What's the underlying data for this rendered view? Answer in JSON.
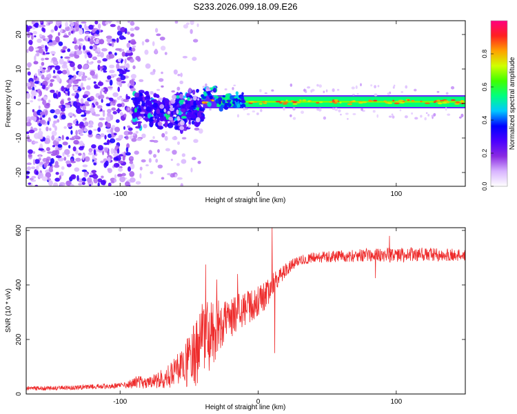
{
  "title": "S233.2026.099.18.09.E26",
  "chart_data": [
    {
      "type": "heatmap",
      "name": "spectrogram",
      "xlabel": "Height of straight line (km)",
      "ylabel": "Frequency (Hz)",
      "xlim": [
        -168,
        150
      ],
      "ylim": [
        -24,
        24
      ],
      "xticks": [
        -100,
        0,
        100
      ],
      "yticks": [
        -20,
        -10,
        0,
        10,
        20
      ],
      "colorbar": {
        "label": "Normalized spectral amplitude",
        "range": [
          0,
          1
        ],
        "ticks": [
          0.0,
          0.2,
          0.4,
          0.6,
          0.8
        ],
        "tick_labels": [
          "0.0",
          "0.2",
          "0.4",
          "0.6",
          "0.8"
        ],
        "colors": [
          "#ffffff",
          "#d8b4ff",
          "#8a2be2",
          "#4b00ff",
          "#0000ff",
          "#00c8ff",
          "#00ff80",
          "#40ff00",
          "#d0ff00",
          "#ffa000",
          "#ff2020",
          "#ff0080"
        ]
      },
      "features": [
        {
          "x_range": [
            -168,
            -90
          ],
          "freq_range": [
            -24,
            24
          ],
          "amplitude": 0.2,
          "note": "broadband scattered noise"
        },
        {
          "x_range": [
            -90,
            -40
          ],
          "freq_range": [
            -9,
            6
          ],
          "amplitude": 0.35,
          "note": "narrowing energy band"
        },
        {
          "x_range": [
            -40,
            150
          ],
          "freq_center": 0.5,
          "freq_width": 3,
          "amplitude": 0.8,
          "note": "strong narrowband carrier near 0 Hz"
        }
      ]
    },
    {
      "type": "line",
      "name": "snr",
      "xlabel": "Height of straight line (km)",
      "ylabel": "SNR (10 * v/v)",
      "xlim": [
        -168,
        150
      ],
      "ylim": [
        0,
        610
      ],
      "xticks": [
        -100,
        0,
        100
      ],
      "yticks": [
        0,
        200,
        400,
        600
      ],
      "color": "#ee2a2a",
      "series": [
        {
          "name": "SNR",
          "x": [
            -168,
            -150,
            -130,
            -110,
            -95,
            -88,
            -80,
            -70,
            -60,
            -50,
            -45,
            -40,
            -35,
            -30,
            -25,
            -20,
            -15,
            -10,
            -5,
            0,
            5,
            10,
            15,
            20,
            25,
            30,
            40,
            60,
            80,
            100,
            120,
            150
          ],
          "y": [
            20,
            22,
            24,
            28,
            32,
            45,
            40,
            55,
            80,
            120,
            155,
            190,
            215,
            240,
            260,
            280,
            300,
            310,
            325,
            340,
            360,
            395,
            430,
            455,
            475,
            490,
            500,
            505,
            510,
            510,
            512,
            510
          ],
          "noise_amplitude": [
            8,
            8,
            9,
            10,
            12,
            25,
            20,
            35,
            55,
            95,
            130,
            150,
            130,
            110,
            90,
            75,
            70,
            65,
            60,
            55,
            50,
            45,
            35,
            25,
            22,
            20,
            20,
            22,
            25,
            28,
            25,
            22
          ],
          "spikes": [
            {
              "x": -38,
              "y": 475
            },
            {
              "x": -30,
              "y": 420
            },
            {
              "x": -15,
              "y": 440
            },
            {
              "x": 10,
              "y": 610
            },
            {
              "x": 12,
              "y": 150
            },
            {
              "x": 85,
              "y": 425
            },
            {
              "x": 95,
              "y": 580
            }
          ]
        }
      ]
    }
  ]
}
